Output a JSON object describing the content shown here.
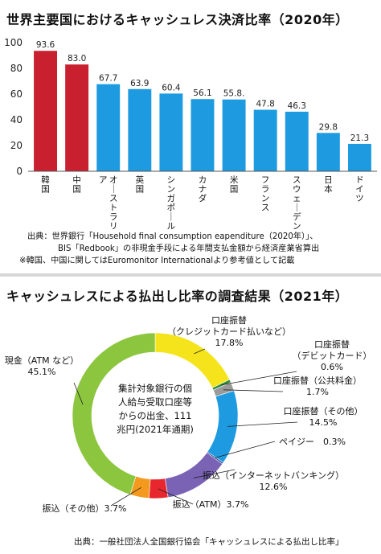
{
  "chart_data": [
    {
      "type": "bar",
      "title": "世界主要国におけるキャッシュレス決済比率（2020年）",
      "categories": [
        "韓国",
        "中国",
        "オーストラリア",
        "英国",
        "シンガポール",
        "カナダ",
        "米国",
        "フランス",
        "スウェーデン",
        "日本",
        "ドイツ"
      ],
      "values": [
        93.6,
        83.0,
        67.7,
        63.9,
        60.4,
        56.1,
        55.8,
        47.8,
        46.3,
        29.8,
        21.3
      ],
      "value_labels": [
        "93.6",
        "83.0",
        "67.7",
        "63.9",
        "60.4",
        "56.1",
        "55.8.",
        "47.8",
        "46.3",
        "29.8",
        "21.3"
      ],
      "colors": [
        "#c8202f",
        "#c8202f",
        "#1e9be0",
        "#1e9be0",
        "#1e9be0",
        "#1e9be0",
        "#1e9be0",
        "#1e9be0",
        "#1e9be0",
        "#1e9be0",
        "#1e9be0"
      ],
      "ylim": [
        0,
        100
      ],
      "yticks": [
        0,
        20,
        40,
        60,
        80,
        100
      ],
      "grid": false,
      "source_lines": [
        "出典：世界銀行「Household final consumption eapenditure（2020年）」、",
        "BIS「Redbook」の非現金手段による年間支払金額から経済産業省算出",
        "※韓国、中国に関してはEuromonitor Internationalより参考値として記載"
      ]
    },
    {
      "type": "pie",
      "title": "キャッシュレスによる払出し比率の調査結果（2021年）",
      "center_label": [
        "集計対象銀行の個",
        "人給与受取口座等",
        "からの出金、111",
        "兆円(2021年通期)"
      ],
      "slices": [
        {
          "label": [
            "口座振替",
            "（クレジットカード払いなど）",
            "17.8%"
          ],
          "value": 17.8,
          "color": "#f5e41c"
        },
        {
          "label": [
            "口座振替",
            "（デビットカード）",
            "0.6%"
          ],
          "value": 0.6,
          "color": "#2e8b3e"
        },
        {
          "label": [
            "口座振替（公共料金）",
            "1.7%"
          ],
          "value": 1.7,
          "color": "#9a9a9a"
        },
        {
          "label": [
            "口座振替（その他）",
            "14.5%"
          ],
          "value": 14.5,
          "color": "#1e9be0"
        },
        {
          "label": [
            "ペイジー　0.3%"
          ],
          "value": 0.3,
          "color": "#1b3f8f"
        },
        {
          "label": [
            "振込（インターネットバンキング）",
            "12.6%"
          ],
          "value": 12.6,
          "color": "#7a63b5"
        },
        {
          "label": [
            "振込（ATM）3.7%"
          ],
          "value": 3.7,
          "color": "#e8262e"
        },
        {
          "label": [
            "振込（その他）3.7%"
          ],
          "value": 3.7,
          "color": "#f39a1e"
        },
        {
          "label": [
            "現金（ATM など）",
            "45.1%"
          ],
          "value": 45.1,
          "color": "#8cc63e"
        }
      ],
      "source": "出典：一般社団法人全国銀行協会「キャッシュレスによる払出し比率」"
    }
  ]
}
